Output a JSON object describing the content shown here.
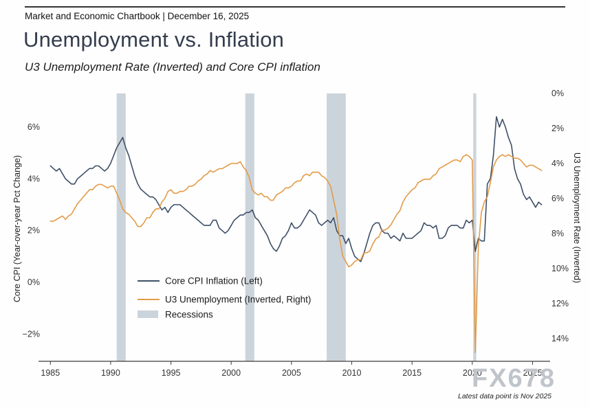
{
  "header": {
    "chartbook_line": "Market and Economic Chartbook | December 16, 2025"
  },
  "title": "Unemployment vs. Inflation",
  "subtitle": "U3 Unemployment Rate (Inverted) and Core CPI inflation",
  "watermark": "FX678",
  "footnote": "Latest data point is Nov 2025",
  "chart_data": {
    "type": "line",
    "title": "Unemployment vs. Inflation",
    "subtitle": "U3 Unemployment Rate (Inverted) and Core CPI inflation",
    "x_range": [
      1984.7,
      2026.0
    ],
    "x_ticks": [
      1985,
      1990,
      1995,
      2000,
      2005,
      2010,
      2015,
      2020,
      2025
    ],
    "x_tick_labels": [
      "1985",
      "1990",
      "1995",
      "2000",
      "2005",
      "2010",
      "2015",
      "2020",
      "2025"
    ],
    "left_axis": {
      "label": "Core CPI (Year-over-year Pct Change)",
      "range": [
        -3.05,
        7.3
      ],
      "ticks": [
        6,
        4,
        2,
        0,
        -2
      ],
      "tick_labels": [
        "6%",
        "4%",
        "2%",
        "0%",
        "−2%"
      ]
    },
    "right_axis": {
      "label": "U3 Unemployment Rate (Inverted)",
      "inverted": true,
      "range": [
        0,
        15.3
      ],
      "ticks": [
        0,
        2,
        4,
        6,
        8,
        10,
        12,
        14
      ],
      "tick_labels": [
        "0%",
        "2%",
        "4%",
        "6%",
        "8%",
        "10%",
        "12%",
        "14%"
      ]
    },
    "recession_color": "#ccd4db",
    "recessions": [
      [
        1990.5,
        1991.25
      ],
      [
        2001.17,
        2001.92
      ],
      [
        2007.92,
        2009.5
      ],
      [
        2020.08,
        2020.33
      ]
    ],
    "legend": {
      "recessions_label": "Recessions"
    },
    "series": [
      {
        "name": "Core CPI Inflation (Left)",
        "axis": "left",
        "color": "#3e4f66",
        "x_start": 1985.0,
        "x_step": 0.25,
        "values": [
          4.5,
          4.4,
          4.3,
          4.4,
          4.2,
          4.0,
          3.9,
          3.8,
          3.8,
          4.0,
          4.1,
          4.2,
          4.3,
          4.4,
          4.4,
          4.5,
          4.5,
          4.4,
          4.3,
          4.4,
          4.6,
          4.9,
          5.2,
          5.4,
          5.6,
          5.2,
          4.9,
          4.5,
          4.1,
          3.8,
          3.6,
          3.5,
          3.4,
          3.3,
          3.3,
          3.2,
          3.0,
          2.8,
          2.9,
          2.7,
          2.9,
          3.0,
          3.0,
          3.0,
          2.9,
          2.8,
          2.7,
          2.6,
          2.5,
          2.4,
          2.3,
          2.2,
          2.2,
          2.2,
          2.4,
          2.4,
          2.1,
          2.0,
          1.9,
          2.0,
          2.2,
          2.4,
          2.5,
          2.6,
          2.6,
          2.7,
          2.7,
          2.8,
          2.5,
          2.4,
          2.2,
          2.0,
          1.8,
          1.5,
          1.3,
          1.2,
          1.4,
          1.7,
          1.8,
          2.0,
          2.3,
          2.1,
          2.1,
          2.2,
          2.4,
          2.6,
          2.8,
          2.7,
          2.6,
          2.3,
          2.2,
          2.3,
          2.4,
          2.3,
          2.5,
          2.0,
          1.8,
          1.8,
          1.5,
          1.7,
          1.3,
          1.0,
          0.9,
          0.8,
          1.1,
          1.5,
          1.9,
          2.2,
          2.3,
          2.3,
          2.0,
          1.9,
          1.9,
          1.7,
          1.8,
          1.7,
          1.6,
          1.9,
          1.7,
          1.7,
          1.7,
          1.8,
          1.9,
          2.0,
          2.3,
          2.2,
          2.2,
          2.1,
          2.2,
          1.7,
          1.7,
          1.8,
          2.1,
          2.2,
          2.2,
          2.2,
          2.1,
          2.1,
          2.4,
          2.3,
          2.4,
          1.2,
          1.7,
          1.6,
          1.6,
          3.8,
          4.0,
          4.9,
          6.4,
          6.0,
          6.3,
          6.0,
          5.6,
          5.3,
          4.4,
          4.0,
          3.8,
          3.4,
          3.2,
          3.3,
          3.1,
          2.9,
          3.1,
          3.0
        ]
      },
      {
        "name": "U3 Unemployment (Inverted, Right)",
        "axis": "right",
        "color": "#e39a47",
        "x_start": 1985.0,
        "x_step": 0.25,
        "values": [
          7.3,
          7.3,
          7.2,
          7.1,
          7.0,
          7.2,
          7.0,
          6.9,
          6.6,
          6.3,
          6.1,
          5.9,
          5.7,
          5.5,
          5.5,
          5.3,
          5.2,
          5.2,
          5.3,
          5.4,
          5.3,
          5.3,
          5.7,
          6.1,
          6.6,
          6.8,
          6.9,
          7.1,
          7.3,
          7.6,
          7.6,
          7.4,
          7.1,
          7.1,
          6.8,
          6.6,
          6.6,
          6.2,
          6.0,
          5.6,
          5.5,
          5.7,
          5.7,
          5.6,
          5.6,
          5.5,
          5.3,
          5.3,
          5.2,
          5.0,
          4.9,
          4.7,
          4.6,
          4.4,
          4.5,
          4.4,
          4.3,
          4.3,
          4.2,
          4.1,
          4.0,
          4.0,
          4.0,
          3.9,
          4.2,
          4.4,
          4.8,
          5.5,
          5.7,
          5.8,
          5.7,
          5.9,
          5.9,
          6.1,
          6.1,
          5.8,
          5.7,
          5.6,
          5.4,
          5.4,
          5.3,
          5.1,
          5.0,
          5.0,
          4.7,
          4.6,
          4.7,
          4.5,
          4.5,
          4.5,
          4.7,
          4.8,
          5.0,
          5.3,
          6.1,
          6.9,
          8.3,
          9.3,
          9.6,
          9.9,
          9.8,
          9.6,
          9.5,
          9.5,
          9.1,
          9.1,
          9.0,
          8.6,
          8.3,
          8.2,
          7.8,
          7.8,
          7.7,
          7.5,
          7.2,
          6.9,
          6.7,
          6.2,
          5.9,
          5.7,
          5.5,
          5.4,
          5.1,
          5.0,
          4.9,
          4.9,
          4.9,
          4.7,
          4.6,
          4.3,
          4.2,
          4.1,
          4.0,
          3.9,
          3.8,
          3.8,
          3.9,
          3.6,
          3.5,
          3.6,
          3.8,
          14.8,
          8.8,
          6.8,
          6.2,
          5.9,
          5.1,
          4.2,
          3.8,
          3.6,
          3.5,
          3.6,
          3.5,
          3.6,
          3.7,
          3.7,
          3.8,
          4.0,
          4.2,
          4.1,
          4.1,
          4.2,
          4.3,
          4.4
        ]
      }
    ]
  }
}
